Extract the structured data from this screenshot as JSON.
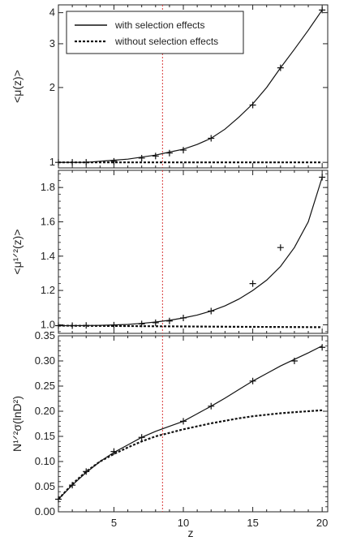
{
  "chart_data": [
    {
      "type": "line",
      "panel": "top",
      "ylabel_text": "<μ(z)>",
      "ylim": [
        0.95,
        4.3
      ],
      "yscale": "log",
      "yticks": [
        1,
        2,
        3,
        4
      ],
      "ytick_labels": [
        "1",
        "2",
        "3",
        "4"
      ],
      "legend": {
        "placement": "top-left",
        "entries": [
          {
            "label": "with selection effects",
            "style": "solid"
          },
          {
            "label": "without selection effects",
            "style": "dotted"
          }
        ]
      },
      "series": [
        {
          "name": "with selection effects",
          "style": "solid",
          "x": [
            1,
            2,
            3,
            4,
            5,
            6,
            7,
            8,
            9,
            10,
            11,
            12,
            13,
            14,
            15,
            16,
            17,
            18,
            19,
            20
          ],
          "y": [
            1.0,
            1.0,
            1.0,
            1.01,
            1.02,
            1.03,
            1.05,
            1.07,
            1.1,
            1.13,
            1.18,
            1.25,
            1.36,
            1.52,
            1.72,
            2.0,
            2.4,
            2.85,
            3.4,
            4.1
          ]
        },
        {
          "name": "without selection effects",
          "style": "dotted",
          "x": [
            1,
            5,
            10,
            15,
            20
          ],
          "y": [
            1.0,
            1.0,
            1.0,
            1.0,
            1.0
          ]
        },
        {
          "name": "simulation points",
          "style": "plus",
          "x": [
            1,
            2,
            3,
            5,
            7,
            8,
            9,
            10,
            12,
            15,
            17,
            20
          ],
          "y": [
            1.0,
            1.0,
            1.0,
            1.01,
            1.04,
            1.06,
            1.09,
            1.12,
            1.25,
            1.7,
            2.4,
            4.1
          ]
        }
      ]
    },
    {
      "type": "line",
      "panel": "middle",
      "ylabel_text": "<μ¹ᐟ²(z)>",
      "ylim": [
        0.95,
        1.9
      ],
      "yticks": [
        1.0,
        1.2,
        1.4,
        1.6,
        1.8
      ],
      "ytick_labels": [
        "1.0",
        "1.2",
        "1.4",
        "1.6",
        "1.8"
      ],
      "series": [
        {
          "name": "with selection effects",
          "style": "solid",
          "x": [
            1,
            2,
            3,
            4,
            5,
            6,
            7,
            8,
            9,
            10,
            11,
            12,
            13,
            14,
            15,
            16,
            17,
            18,
            19,
            20
          ],
          "y": [
            0.995,
            0.995,
            0.996,
            0.997,
            0.999,
            1.002,
            1.008,
            1.016,
            1.026,
            1.04,
            1.057,
            1.08,
            1.11,
            1.15,
            1.2,
            1.26,
            1.34,
            1.45,
            1.6,
            1.86
          ]
        },
        {
          "name": "without selection effects",
          "style": "dotted",
          "x": [
            1,
            5,
            10,
            15,
            20
          ],
          "y": [
            0.995,
            0.993,
            0.99,
            0.988,
            0.986
          ]
        },
        {
          "name": "simulation points",
          "style": "plus",
          "x": [
            1,
            2,
            3,
            5,
            7,
            8,
            9,
            10,
            12,
            15,
            17,
            20
          ],
          "y": [
            0.995,
            0.995,
            0.996,
            0.998,
            1.005,
            1.012,
            1.022,
            1.04,
            1.08,
            1.24,
            1.45,
            1.86
          ]
        }
      ]
    },
    {
      "type": "line",
      "panel": "bottom",
      "xlabel": "z",
      "ylabel_text": "N¹ᐟ²σ(lnD²)",
      "xlim": [
        1,
        20.4
      ],
      "ylim": [
        0,
        0.35
      ],
      "xticks": [
        5,
        10,
        15,
        20
      ],
      "xtick_labels": [
        "5",
        "10",
        "15",
        "20"
      ],
      "yticks": [
        0,
        0.05,
        0.1,
        0.15,
        0.2,
        0.25,
        0.3,
        0.35
      ],
      "ytick_labels": [
        "0.00",
        "0.05",
        "0.10",
        "0.15",
        "0.20",
        "0.25",
        "0.30",
        "0.35"
      ],
      "series": [
        {
          "name": "with selection effects",
          "style": "solid",
          "x": [
            1,
            2,
            3,
            4,
            5,
            6,
            7,
            8,
            9,
            10,
            11,
            12,
            13,
            14,
            15,
            16,
            17,
            18,
            19,
            20
          ],
          "y": [
            0.025,
            0.053,
            0.078,
            0.1,
            0.118,
            0.133,
            0.148,
            0.16,
            0.17,
            0.18,
            0.195,
            0.21,
            0.226,
            0.243,
            0.26,
            0.275,
            0.29,
            0.303,
            0.316,
            0.33
          ]
        },
        {
          "name": "without selection effects",
          "style": "dotted",
          "x": [
            1,
            2,
            3,
            4,
            5,
            6,
            7,
            8,
            9,
            10,
            11,
            12,
            13,
            14,
            15,
            16,
            17,
            18,
            19,
            20
          ],
          "y": [
            0.025,
            0.055,
            0.08,
            0.1,
            0.115,
            0.128,
            0.14,
            0.15,
            0.157,
            0.164,
            0.17,
            0.176,
            0.181,
            0.186,
            0.19,
            0.193,
            0.196,
            0.198,
            0.2,
            0.202
          ]
        },
        {
          "name": "simulation points",
          "style": "plus",
          "x": [
            1,
            2,
            3,
            5,
            7,
            10,
            12,
            15,
            18,
            20
          ],
          "y": [
            0.025,
            0.053,
            0.08,
            0.12,
            0.148,
            0.18,
            0.21,
            0.26,
            0.3,
            0.327
          ]
        }
      ]
    }
  ],
  "shared": {
    "xlim": [
      1,
      20.4
    ],
    "vline_x": 8.5,
    "vline_color": "#d93a3a",
    "line_color": "#111111"
  }
}
